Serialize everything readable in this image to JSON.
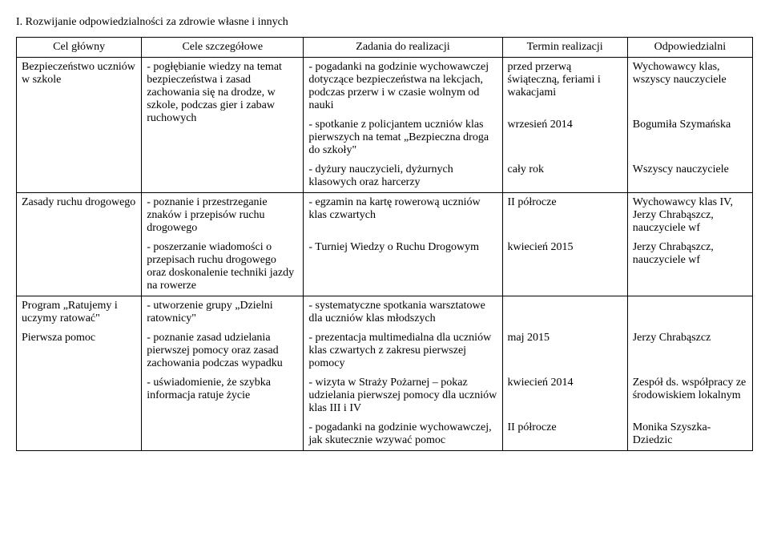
{
  "section_title": "I. Rozwijanie odpowiedzialności za zdrowie własne i innych",
  "headers": {
    "c1": "Cel główny",
    "c2": "Cele szczegółowe",
    "c3": "Zadania do realizacji",
    "c4": "Termin realizacji",
    "c5": "Odpowiedzialni"
  },
  "r1": {
    "c1": "Bezpieczeństwo uczniów w szkole",
    "c2": "- pogłębianie wiedzy na temat bezpieczeństwa i zasad zachowania się na drodze, w szkole, podczas gier i zabaw ruchowych",
    "c3a": "- pogadanki na godzinie wychowawczej dotyczące bezpieczeństwa na lekcjach, podczas przerw i w czasie wolnym od nauki",
    "c3b": "- spotkanie z policjantem uczniów klas pierwszych na temat „Bezpieczna droga do szkoły\"",
    "c3c": "- dyżury nauczycieli, dyżurnych klasowych oraz harcerzy",
    "c4a": "przed przerwą świąteczną, feriami i wakacjami",
    "c4b": "wrzesień 2014",
    "c4c": "cały rok",
    "c5a": "Wychowawcy klas, wszyscy nauczyciele",
    "c5b": "Bogumiła Szymańska",
    "c5c": "Wszyscy nauczyciele"
  },
  "r2": {
    "c1": "Zasady ruchu drogowego",
    "c2a": "- poznanie i przestrzeganie znaków i przepisów ruchu drogowego",
    "c2b": "- poszerzanie wiadomości o przepisach ruchu drogowego oraz doskonalenie techniki jazdy na rowerze",
    "c3a": "- egzamin na kartę rowerową uczniów klas czwartych",
    "c3b": "- Turniej Wiedzy o Ruchu Drogowym",
    "c4a": "II półrocze",
    "c4b": "kwiecień 2015",
    "c5a": "Wychowawcy klas IV, Jerzy Chrabąszcz, nauczyciele wf",
    "c5b": "Jerzy Chrabąszcz, nauczyciele wf"
  },
  "r3": {
    "c1a": "Program „Ratujemy i uczymy ratować\"",
    "c1b": "Pierwsza pomoc",
    "c2a": "- utworzenie grupy „Dzielni ratownicy\"",
    "c2b": "- poznanie zasad udzielania pierwszej pomocy oraz zasad zachowania podczas wypadku",
    "c2c": "- uświadomienie, że szybka informacja ratuje życie",
    "c3a": "- systematyczne spotkania warsztatowe dla uczniów klas młodszych",
    "c3b": "- prezentacja multimedialna dla uczniów klas czwartych z zakresu pierwszej pomocy",
    "c3c": "- wizyta w Straży Pożarnej – pokaz udzielania pierwszej pomocy dla uczniów klas III i IV",
    "c3d": "- pogadanki na godzinie wychowawczej, jak skutecznie wzywać pomoc",
    "c4b": "maj 2015",
    "c4c": "kwiecień 2014",
    "c4d": "II półrocze",
    "c5b": "Jerzy Chrabąszcz",
    "c5c": "Zespół ds. współpracy ze środowiskiem lokalnym",
    "c5d": "Monika Szyszka-Dziedzic"
  }
}
